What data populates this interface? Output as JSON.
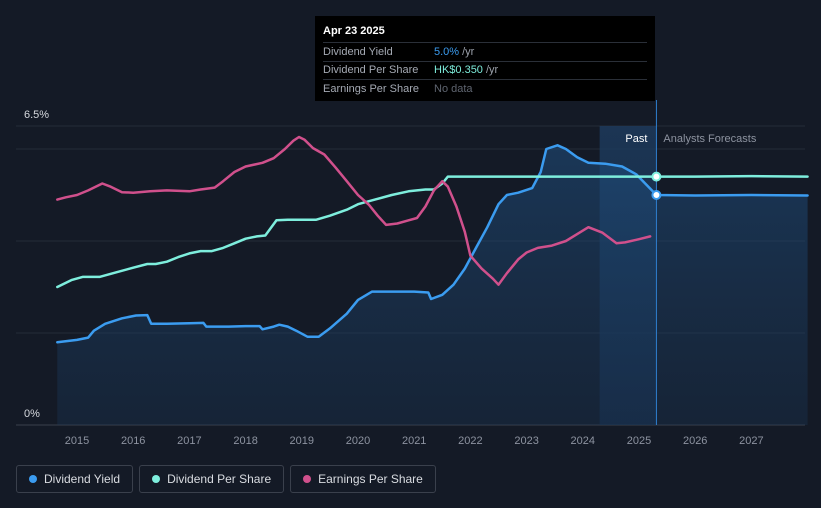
{
  "tooltip": {
    "date": "Apr 23 2025",
    "rows": [
      {
        "label": "Dividend Yield",
        "value": "5.0%",
        "unit": "/yr"
      },
      {
        "label": "Dividend Per Share",
        "value": "HK$0.350",
        "unit": "/yr"
      },
      {
        "label": "Earnings Per Share",
        "value": "No data",
        "unit": ""
      }
    ]
  },
  "regions": {
    "past": "Past",
    "forecast": "Analysts Forecasts"
  },
  "legend": [
    {
      "label": "Dividend Yield",
      "color": "#3b9cf0"
    },
    {
      "label": "Dividend Per Share",
      "color": "#7eeedd"
    },
    {
      "label": "Earnings Per Share",
      "color": "#d0508c"
    }
  ],
  "chart_data": {
    "type": "line",
    "x_ticks": [
      "2015",
      "2016",
      "2017",
      "2018",
      "2019",
      "2020",
      "2021",
      "2022",
      "2023",
      "2024",
      "2025",
      "2026",
      "2027"
    ],
    "y_ticks": [
      {
        "value": 6.5,
        "label": "6.5%"
      },
      {
        "value": 0,
        "label": "0%"
      }
    ],
    "ylim": [
      0,
      6.5
    ],
    "xlim": [
      2014.3,
      2028.0
    ],
    "past_forecast_boundary": 2025.31,
    "series": [
      {
        "name": "Dividend Yield",
        "color": "#3b9cf0",
        "area": true,
        "points": [
          [
            2014.65,
            1.8
          ],
          [
            2015.0,
            1.85
          ],
          [
            2015.2,
            1.9
          ],
          [
            2015.3,
            2.05
          ],
          [
            2015.5,
            2.2
          ],
          [
            2015.8,
            2.32
          ],
          [
            2016.05,
            2.38
          ],
          [
            2016.25,
            2.39
          ],
          [
            2016.32,
            2.2
          ],
          [
            2016.6,
            2.2
          ],
          [
            2017.0,
            2.21
          ],
          [
            2017.25,
            2.22
          ],
          [
            2017.3,
            2.14
          ],
          [
            2017.7,
            2.14
          ],
          [
            2018.0,
            2.15
          ],
          [
            2018.25,
            2.15
          ],
          [
            2018.3,
            2.08
          ],
          [
            2018.5,
            2.14
          ],
          [
            2018.6,
            2.18
          ],
          [
            2018.75,
            2.14
          ],
          [
            2018.9,
            2.05
          ],
          [
            2019.1,
            1.92
          ],
          [
            2019.3,
            1.92
          ],
          [
            2019.5,
            2.1
          ],
          [
            2019.8,
            2.42
          ],
          [
            2020.0,
            2.72
          ],
          [
            2020.25,
            2.9
          ],
          [
            2020.5,
            2.9
          ],
          [
            2021.0,
            2.9
          ],
          [
            2021.25,
            2.88
          ],
          [
            2021.3,
            2.74
          ],
          [
            2021.5,
            2.83
          ],
          [
            2021.7,
            3.05
          ],
          [
            2021.9,
            3.4
          ],
          [
            2022.1,
            3.85
          ],
          [
            2022.3,
            4.3
          ],
          [
            2022.5,
            4.8
          ],
          [
            2022.65,
            5.0
          ],
          [
            2022.85,
            5.05
          ],
          [
            2023.1,
            5.15
          ],
          [
            2023.25,
            5.5
          ],
          [
            2023.35,
            6.0
          ],
          [
            2023.55,
            6.08
          ],
          [
            2023.7,
            6.0
          ],
          [
            2023.9,
            5.82
          ],
          [
            2024.1,
            5.7
          ],
          [
            2024.4,
            5.68
          ],
          [
            2024.7,
            5.62
          ],
          [
            2024.95,
            5.45
          ],
          [
            2025.15,
            5.2
          ],
          [
            2025.31,
            5.0
          ],
          [
            2026.0,
            4.99
          ],
          [
            2027.0,
            5.0
          ],
          [
            2028.0,
            4.99
          ]
        ]
      },
      {
        "name": "Dividend Per Share",
        "color": "#7eeedd",
        "area": false,
        "points": [
          [
            2014.65,
            3.0
          ],
          [
            2014.9,
            3.15
          ],
          [
            2015.1,
            3.22
          ],
          [
            2015.4,
            3.22
          ],
          [
            2015.7,
            3.32
          ],
          [
            2016.0,
            3.42
          ],
          [
            2016.25,
            3.5
          ],
          [
            2016.4,
            3.5
          ],
          [
            2016.6,
            3.55
          ],
          [
            2016.8,
            3.65
          ],
          [
            2017.0,
            3.73
          ],
          [
            2017.2,
            3.78
          ],
          [
            2017.4,
            3.78
          ],
          [
            2017.6,
            3.85
          ],
          [
            2017.8,
            3.95
          ],
          [
            2018.0,
            4.05
          ],
          [
            2018.2,
            4.1
          ],
          [
            2018.35,
            4.12
          ],
          [
            2018.55,
            4.45
          ],
          [
            2018.75,
            4.46
          ],
          [
            2019.0,
            4.46
          ],
          [
            2019.25,
            4.46
          ],
          [
            2019.5,
            4.55
          ],
          [
            2019.8,
            4.68
          ],
          [
            2020.0,
            4.8
          ],
          [
            2020.3,
            4.9
          ],
          [
            2020.6,
            5.0
          ],
          [
            2020.9,
            5.08
          ],
          [
            2021.2,
            5.12
          ],
          [
            2021.35,
            5.12
          ],
          [
            2021.5,
            5.25
          ],
          [
            2021.6,
            5.4
          ],
          [
            2022.0,
            5.4
          ],
          [
            2023.0,
            5.4
          ],
          [
            2024.0,
            5.4
          ],
          [
            2025.0,
            5.4
          ],
          [
            2025.31,
            5.4
          ],
          [
            2026.0,
            5.4
          ],
          [
            2027.0,
            5.41
          ],
          [
            2028.0,
            5.4
          ]
        ]
      },
      {
        "name": "Earnings Per Share",
        "color": "#d0508c",
        "area": false,
        "points": [
          [
            2014.65,
            4.9
          ],
          [
            2014.8,
            4.95
          ],
          [
            2015.0,
            5.0
          ],
          [
            2015.2,
            5.1
          ],
          [
            2015.45,
            5.25
          ],
          [
            2015.6,
            5.18
          ],
          [
            2015.8,
            5.06
          ],
          [
            2016.0,
            5.05
          ],
          [
            2016.3,
            5.08
          ],
          [
            2016.6,
            5.1
          ],
          [
            2017.0,
            5.08
          ],
          [
            2017.2,
            5.12
          ],
          [
            2017.45,
            5.16
          ],
          [
            2017.6,
            5.3
          ],
          [
            2017.8,
            5.5
          ],
          [
            2018.0,
            5.62
          ],
          [
            2018.3,
            5.7
          ],
          [
            2018.5,
            5.8
          ],
          [
            2018.7,
            6.0
          ],
          [
            2018.85,
            6.18
          ],
          [
            2018.95,
            6.26
          ],
          [
            2019.05,
            6.2
          ],
          [
            2019.2,
            6.02
          ],
          [
            2019.4,
            5.88
          ],
          [
            2019.6,
            5.6
          ],
          [
            2019.8,
            5.3
          ],
          [
            2020.0,
            5.0
          ],
          [
            2020.2,
            4.78
          ],
          [
            2020.35,
            4.55
          ],
          [
            2020.5,
            4.35
          ],
          [
            2020.7,
            4.38
          ],
          [
            2020.9,
            4.45
          ],
          [
            2021.05,
            4.5
          ],
          [
            2021.2,
            4.75
          ],
          [
            2021.35,
            5.1
          ],
          [
            2021.5,
            5.3
          ],
          [
            2021.6,
            5.18
          ],
          [
            2021.75,
            4.75
          ],
          [
            2021.9,
            4.2
          ],
          [
            2022.0,
            3.68
          ],
          [
            2022.2,
            3.4
          ],
          [
            2022.4,
            3.18
          ],
          [
            2022.5,
            3.05
          ],
          [
            2022.65,
            3.3
          ],
          [
            2022.85,
            3.6
          ],
          [
            2023.0,
            3.75
          ],
          [
            2023.2,
            3.85
          ],
          [
            2023.45,
            3.9
          ],
          [
            2023.7,
            4.0
          ],
          [
            2023.9,
            4.15
          ],
          [
            2024.1,
            4.3
          ],
          [
            2024.35,
            4.18
          ],
          [
            2024.6,
            3.95
          ],
          [
            2024.75,
            3.97
          ],
          [
            2025.0,
            4.04
          ],
          [
            2025.2,
            4.1
          ]
        ]
      }
    ]
  }
}
